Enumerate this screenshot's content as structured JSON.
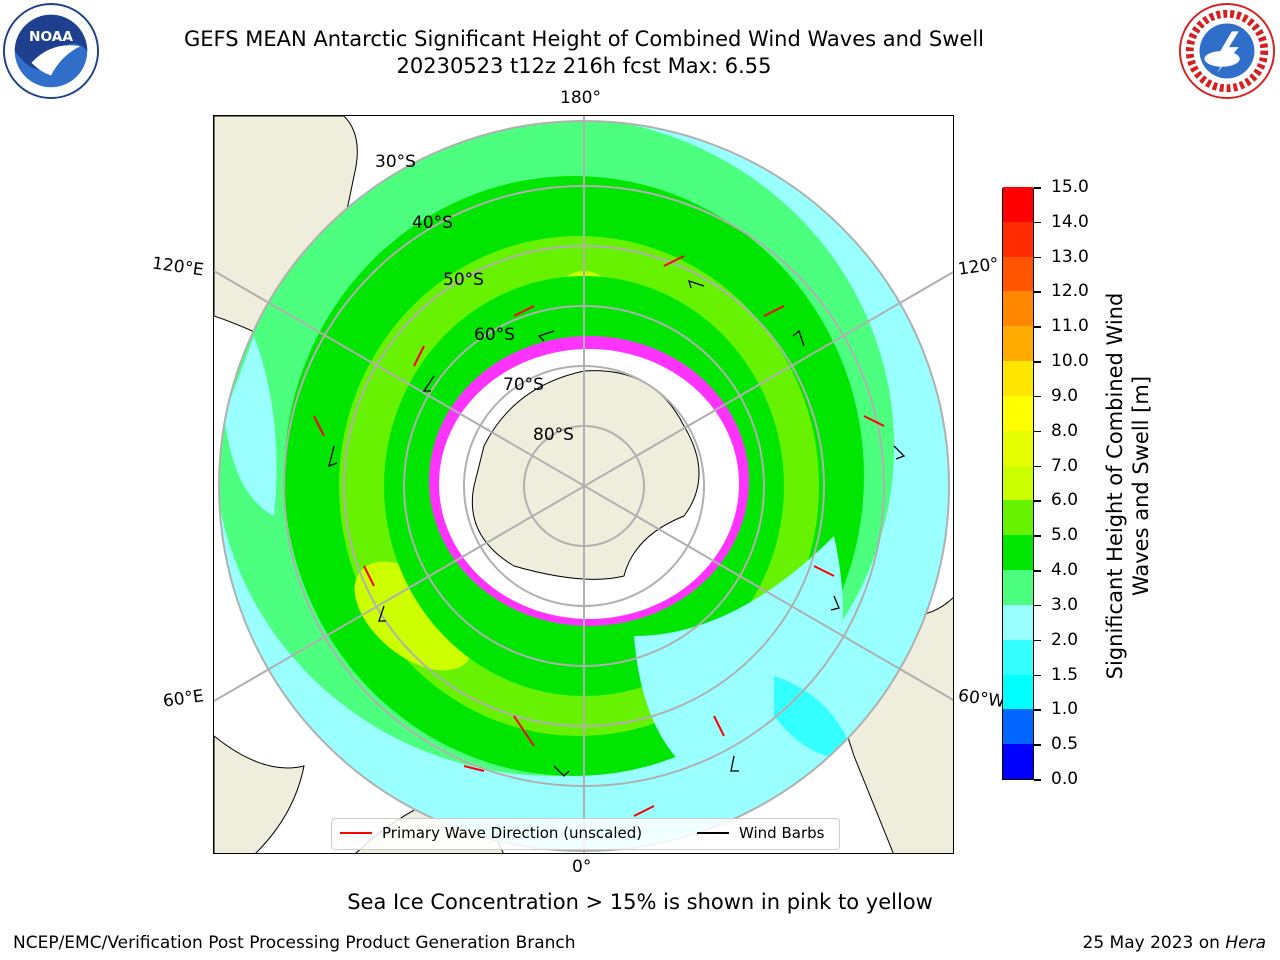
{
  "header": {
    "title_line1": "GEFS MEAN Antarctic Significant Height of Combined Wind Waves and Swell",
    "title_line2": "20230523 t12z 216h fcst   Max: 6.55"
  },
  "logos": {
    "left": "noaa-logo",
    "left_text": "NOAA",
    "right": "nws-logo"
  },
  "map": {
    "projection": "south-polar-stereographic",
    "longitude_labels": {
      "top": "180°",
      "bottom": "0°",
      "upper_left": "120°E",
      "lower_left": "60°E",
      "upper_right": "120°",
      "lower_right": "60°W"
    },
    "latitude_labels": [
      "30°S",
      "40°S",
      "50°S",
      "60°S",
      "70°S",
      "80°S"
    ],
    "colors": {
      "land": "#efeedc",
      "ice_edge": "#ff33ff",
      "wind_barb": "#000000",
      "wave_arrow": "#ff0000"
    }
  },
  "colorbar": {
    "label": "Significant Height of Combined Wind Waves and Swell [m]",
    "ticks": [
      "0.0",
      "0.5",
      "1.0",
      "1.5",
      "2.0",
      "3.0",
      "4.0",
      "5.0",
      "6.0",
      "7.0",
      "8.0",
      "9.0",
      "10.0",
      "11.0",
      "12.0",
      "13.0",
      "14.0",
      "15.0"
    ],
    "colors": [
      "#0000ff",
      "#0066ff",
      "#00ffff",
      "#33ffff",
      "#99ffff",
      "#4cff7f",
      "#00e600",
      "#66f200",
      "#ccff00",
      "#e6ff00",
      "#ffff00",
      "#ffe600",
      "#ffaa00",
      "#ff8800",
      "#ff5500",
      "#ff2a00",
      "#ff0000"
    ]
  },
  "legend": {
    "wave_label": "Primary Wave Direction (unscaled)",
    "barb_label": "Wind Barbs"
  },
  "notes": {
    "sea_ice": "Sea Ice Concentration > 15% is shown in pink to yellow"
  },
  "footer": {
    "left": "NCEP/EMC/Verification Post Processing Product Generation Branch",
    "date": "25 May 2023 on ",
    "host": "Hera"
  }
}
